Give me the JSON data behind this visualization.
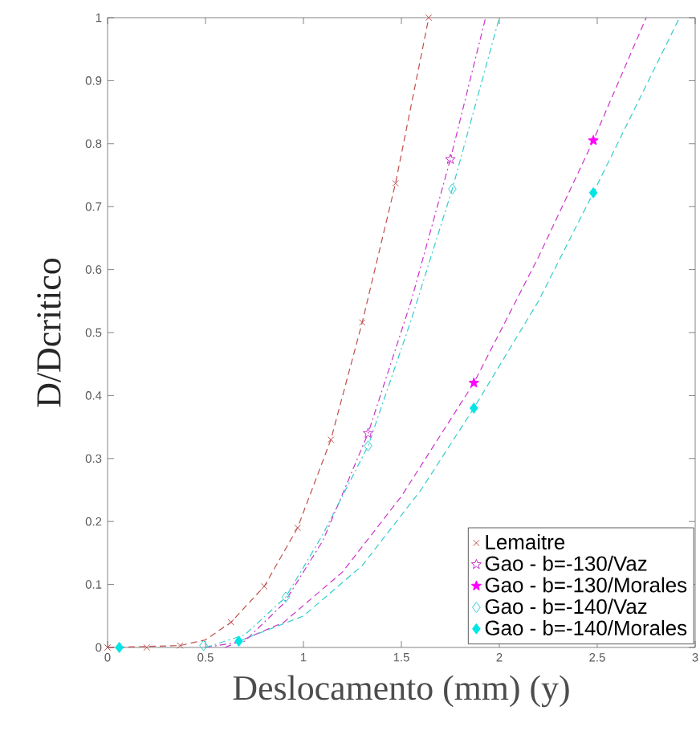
{
  "chart_data": {
    "type": "scatter",
    "xlabel": "Deslocamento (mm) (y)",
    "ylabel": "D/Dcritico",
    "xlim": [
      0,
      3
    ],
    "ylim": [
      0,
      1
    ],
    "xticks": [
      0,
      0.5,
      1,
      1.5,
      2,
      2.5,
      3
    ],
    "yticks": [
      0,
      0.1,
      0.2,
      0.3,
      0.4,
      0.5,
      0.6,
      0.7,
      0.8,
      0.9,
      1
    ],
    "grid": false,
    "legend": "bottom right",
    "series": [
      {
        "type": "line",
        "color": "#c0504d",
        "line_style": "dashed",
        "marker": "none",
        "x": [
          0,
          0.37,
          0.5,
          0.63,
          0.8,
          0.97,
          1.14,
          1.3,
          1.47,
          1.64
        ],
        "values": [
          0,
          0.003,
          0.012,
          0.04,
          0.097,
          0.19,
          0.33,
          0.516,
          0.737,
          1
        ]
      },
      {
        "type": "line",
        "color": "#cc33cc",
        "line_style": "dashdot",
        "marker": "none",
        "x": [
          0.5,
          0.7,
          0.9,
          1.1,
          1.33,
          1.55,
          1.75,
          1.93
        ],
        "values": [
          0,
          0.01,
          0.07,
          0.17,
          0.34,
          0.55,
          0.775,
          1
        ]
      },
      {
        "type": "line",
        "color": "#33cccc",
        "line_style": "dashdot",
        "marker": "none",
        "x": [
          0.5,
          0.7,
          0.91,
          1.1,
          1.33,
          1.55,
          1.76,
          2.0
        ],
        "values": [
          0,
          0.02,
          0.08,
          0.18,
          0.32,
          0.52,
          0.728,
          1
        ]
      },
      {
        "type": "line",
        "color": "#cc33cc",
        "line_style": "dashed",
        "marker": "none",
        "x": [
          0.6,
          0.9,
          1.2,
          1.5,
          1.87,
          2.2,
          2.48,
          2.75
        ],
        "values": [
          0,
          0.04,
          0.12,
          0.24,
          0.42,
          0.62,
          0.805,
          1
        ]
      },
      {
        "type": "line",
        "color": "#33cccc",
        "line_style": "dashed",
        "marker": "none",
        "x": [
          0.67,
          1.0,
          1.3,
          1.6,
          1.87,
          2.2,
          2.48,
          2.92
        ],
        "values": [
          0.01,
          0.05,
          0.13,
          0.25,
          0.38,
          0.55,
          0.722,
          1
        ]
      },
      {
        "name": "Lemaitre",
        "color": "#c0504d",
        "marker": "cross",
        "x": [
          0,
          0.2,
          0.37,
          0.63,
          0.8,
          0.97,
          1.14,
          1.3,
          1.47,
          1.64
        ],
        "values": [
          0,
          0,
          0.003,
          0.04,
          0.097,
          0.19,
          0.33,
          0.516,
          0.737,
          1
        ]
      },
      {
        "name": "Gao - b=-130/Vaz",
        "color": "#cc33cc",
        "marker": "star",
        "x": [
          1.33,
          1.75
        ],
        "values": [
          0.34,
          0.775
        ]
      },
      {
        "name": "Gao - b=-130/Morales",
        "color": "#ff00ff",
        "marker": "star",
        "x": [
          1.87,
          2.48
        ],
        "values": [
          0.42,
          0.805
        ]
      },
      {
        "name": "Gao - b=-140/Vaz",
        "color": "#33cccc",
        "marker": "diamond",
        "x": [
          0.49,
          0.91,
          1.33,
          1.76
        ],
        "values": [
          0.003,
          0.08,
          0.32,
          0.728
        ]
      },
      {
        "name": "Gao - b=-140/Morales",
        "color": "#00e5e5",
        "marker": "diamond",
        "x": [
          0.06,
          0.67,
          1.87,
          2.48
        ],
        "values": [
          0,
          0.01,
          0.38,
          0.722
        ]
      }
    ]
  }
}
